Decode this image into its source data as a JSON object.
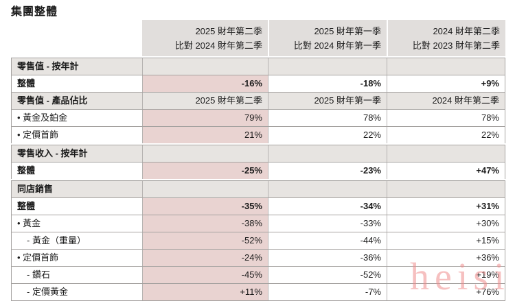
{
  "page_title": "集團整體",
  "table": {
    "header_columns": [
      {
        "line1": "2025 財年第二季",
        "line2": "比對 2024 財年第二季"
      },
      {
        "line1": "2025 財年第一季",
        "line2": "比對 2024 財年第一季"
      },
      {
        "line1": "2024 財年第二季",
        "line2": "比對 2023 財年第二季"
      }
    ],
    "rows": [
      {
        "type": "section",
        "label": "零售值 - 按年計",
        "cells": [
          "",
          "",
          ""
        ]
      },
      {
        "type": "data",
        "bold": true,
        "label": "整體",
        "cells": [
          "-16%",
          "-18%",
          "+9%"
        ]
      },
      {
        "type": "section-cols",
        "label": "零售值 - 產品佔比",
        "cells": [
          "2025 財年第二季",
          "2025 財年第一季",
          "2024 財年第二季"
        ]
      },
      {
        "type": "data",
        "label": "• 黃金及鉑金",
        "cells": [
          "79%",
          "78%",
          "78%"
        ]
      },
      {
        "type": "data",
        "label": "• 定價首飾",
        "cells": [
          "21%",
          "22%",
          "22%"
        ]
      },
      {
        "type": "section",
        "gap": true,
        "label": "零售收入 - 按年計",
        "cells": [
          "",
          "",
          ""
        ]
      },
      {
        "type": "data",
        "bold": true,
        "label": "整體",
        "cells": [
          "-25%",
          "-23%",
          "+47%"
        ]
      },
      {
        "type": "section",
        "gap": true,
        "label": "同店銷售",
        "cells": [
          "",
          "",
          ""
        ]
      },
      {
        "type": "data",
        "bold": true,
        "label": "整體",
        "cells": [
          "-35%",
          "-34%",
          "+31%"
        ]
      },
      {
        "type": "data",
        "label": "• 黃金",
        "cells": [
          "-38%",
          "-33%",
          "+30%"
        ]
      },
      {
        "type": "data",
        "indent": true,
        "label": "- 黃金（重量）",
        "cells": [
          "-52%",
          "-44%",
          "+15%"
        ]
      },
      {
        "type": "data",
        "label": "• 定價首飾",
        "cells": [
          "-24%",
          "-36%",
          "+36%"
        ]
      },
      {
        "type": "data",
        "indent": true,
        "label": "- 鑽石",
        "cells": [
          "-45%",
          "-52%",
          "+19%"
        ]
      },
      {
        "type": "data",
        "indent": true,
        "label": "- 定價黃金",
        "cells": [
          "+11%",
          "-7%",
          "+76%"
        ]
      }
    ]
  },
  "watermark": "heisi",
  "colors": {
    "header_bg": "#e1dedc",
    "section_bg": "#e7e4e1",
    "highlight_bg": "#e9d3d1",
    "border": "#a5a2a0",
    "separator": "#b6b3b1",
    "watermark_color": "#ef8d8d"
  }
}
